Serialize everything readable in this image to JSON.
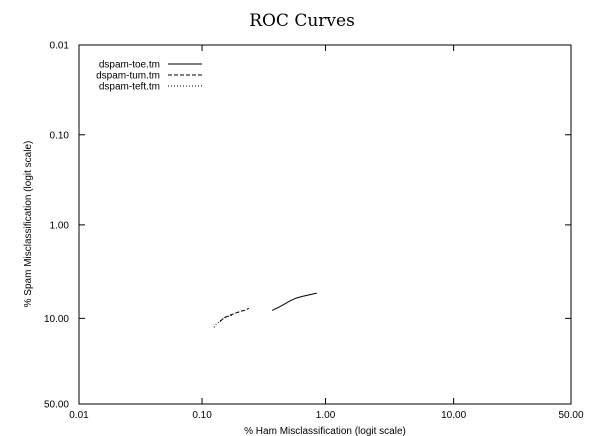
{
  "chart_data": {
    "type": "line",
    "title": "ROC Curves",
    "xlabel": "% Ham Misclassification (logit scale)",
    "ylabel": "% Spam Misclassification (logit scale)",
    "x_scale": "logit",
    "y_scale": "logit",
    "y_inverted": true,
    "xlim": [
      0.01,
      50.0
    ],
    "ylim": [
      0.01,
      50.0
    ],
    "x_ticks": [
      {
        "value": 0.01,
        "label": "0.01"
      },
      {
        "value": 0.1,
        "label": "0.10"
      },
      {
        "value": 1.0,
        "label": "1.00"
      },
      {
        "value": 10.0,
        "label": "10.00"
      },
      {
        "value": 50.0,
        "label": "50.00"
      }
    ],
    "y_ticks": [
      {
        "value": 0.01,
        "label": "0.01"
      },
      {
        "value": 0.1,
        "label": "0.10"
      },
      {
        "value": 1.0,
        "label": "1.00"
      },
      {
        "value": 10.0,
        "label": "10.00"
      },
      {
        "value": 50.0,
        "label": "50.00"
      }
    ],
    "grid": false,
    "legend_position": "top-left",
    "series": [
      {
        "name": "dspam-toe.tm",
        "color": "#000000",
        "dash": "solid",
        "points": [
          [
            0.37,
            8.3
          ],
          [
            0.42,
            7.7
          ],
          [
            0.47,
            7.1
          ],
          [
            0.52,
            6.6
          ],
          [
            0.58,
            6.2
          ],
          [
            0.65,
            5.95
          ],
          [
            0.73,
            5.75
          ],
          [
            0.8,
            5.6
          ],
          [
            0.85,
            5.5
          ]
        ]
      },
      {
        "name": "dspam-tum.tm",
        "color": "#000000",
        "dash": "dashed",
        "points": [
          [
            0.14,
            10.8
          ],
          [
            0.15,
            9.9
          ],
          [
            0.165,
            9.4
          ],
          [
            0.18,
            9.0
          ],
          [
            0.2,
            8.6
          ],
          [
            0.22,
            8.3
          ],
          [
            0.24,
            7.9
          ]
        ]
      },
      {
        "name": "dspam-teft.tm",
        "color": "#000000",
        "dash": "dotted",
        "points": [
          [
            0.125,
            12.3
          ],
          [
            0.13,
            11.5
          ],
          [
            0.14,
            10.6
          ],
          [
            0.15,
            10.0
          ],
          [
            0.165,
            9.5
          ],
          [
            0.18,
            9.2
          ]
        ]
      }
    ]
  }
}
